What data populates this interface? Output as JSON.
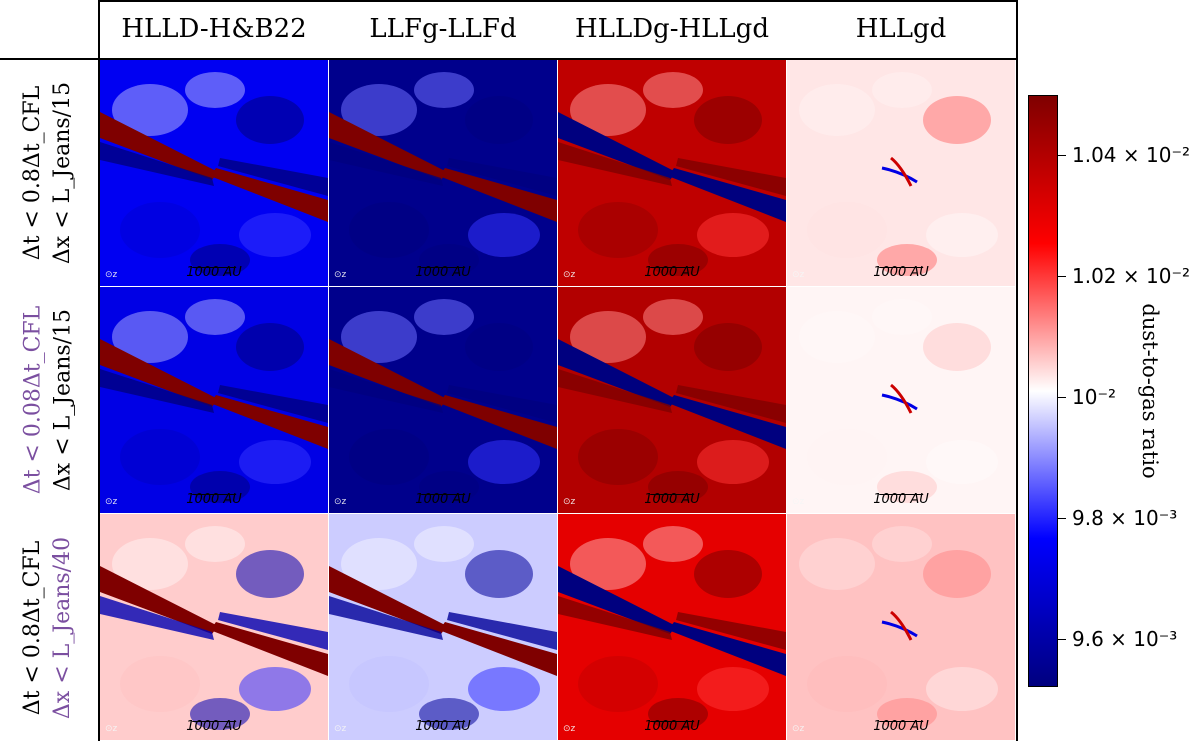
{
  "columns": [
    "HLLD-H&B22",
    "LLFg-LLFd",
    "HLLDg-HLLgd",
    "HLLgd"
  ],
  "rows": [
    {
      "line1": "Δt < 0.8Δt_CFL",
      "line2": "Δx < L_Jeans/15",
      "line1_color": "#000000",
      "line2_color": "#000000"
    },
    {
      "line1": "Δt < 0.08Δt_CFL",
      "line2": "Δx < L_Jeans/15",
      "line1_color": "#7b4fa0",
      "line2_color": "#000000"
    },
    {
      "line1": "Δt < 0.8Δt_CFL",
      "line2": "Δx < L_Jeans/40",
      "line1_color": "#000000",
      "line2_color": "#7b4fa0"
    }
  ],
  "scale_bar_label": "1000 AU",
  "z_marker": "⊙z",
  "colorbar": {
    "label": "dust-to-gas ratio",
    "ticks": [
      "9.6 × 10⁻³",
      "9.8 × 10⁻³",
      "10⁻²",
      "1.02 × 10⁻²",
      "1.04 × 10⁻²"
    ],
    "tick_values": [
      0.0096,
      0.0098,
      0.01,
      0.0102,
      0.0104
    ],
    "range": [
      0.00952,
      0.0105
    ],
    "colors": {
      "low": "#00007f",
      "mid": "#ffffff",
      "high": "#7f0000"
    }
  },
  "chart_data": {
    "type": "heatmap",
    "title": "",
    "grid": "3 rows × 4 columns of dust-to-gas ratio maps",
    "panels": [
      {
        "row": 1,
        "column": "HLLD-H&B22",
        "background_level": -0.55,
        "stream_level": 1.0,
        "inner_level": -1.0
      },
      {
        "row": 1,
        "column": "LLFg-LLFd",
        "background_level": -0.95,
        "stream_level": 1.0,
        "inner_level": -1.0
      },
      {
        "row": 1,
        "column": "HLLDg-HLLgd",
        "background_level": 0.75,
        "stream_level": -1.0,
        "inner_level": 1.0
      },
      {
        "row": 1,
        "column": "HLLgd",
        "background_level": 0.05,
        "stream_level": 0.0,
        "inner_level": 0.4
      },
      {
        "row": 2,
        "column": "HLLD-H&B22",
        "background_level": -0.6,
        "stream_level": 1.0,
        "inner_level": -1.0
      },
      {
        "row": 2,
        "column": "LLFg-LLFd",
        "background_level": -0.95,
        "stream_level": 1.0,
        "inner_level": -1.0
      },
      {
        "row": 2,
        "column": "HLLDg-HLLgd",
        "background_level": 0.8,
        "stream_level": -1.0,
        "inner_level": 1.0
      },
      {
        "row": 2,
        "column": "HLLgd",
        "background_level": 0.02,
        "stream_level": 0.0,
        "inner_level": 0.15
      },
      {
        "row": 3,
        "column": "HLLD-H&B22",
        "background_level": 0.1,
        "stream_level": 1.0,
        "inner_level": -0.8
      },
      {
        "row": 3,
        "column": "LLFg-LLFd",
        "background_level": -0.1,
        "stream_level": 1.0,
        "inner_level": -0.9
      },
      {
        "row": 3,
        "column": "HLLDg-HLLgd",
        "background_level": 0.6,
        "stream_level": -1.0,
        "inner_level": 1.0
      },
      {
        "row": 3,
        "column": "HLLgd",
        "background_level": 0.12,
        "stream_level": 0.0,
        "inner_level": 0.3
      }
    ]
  }
}
